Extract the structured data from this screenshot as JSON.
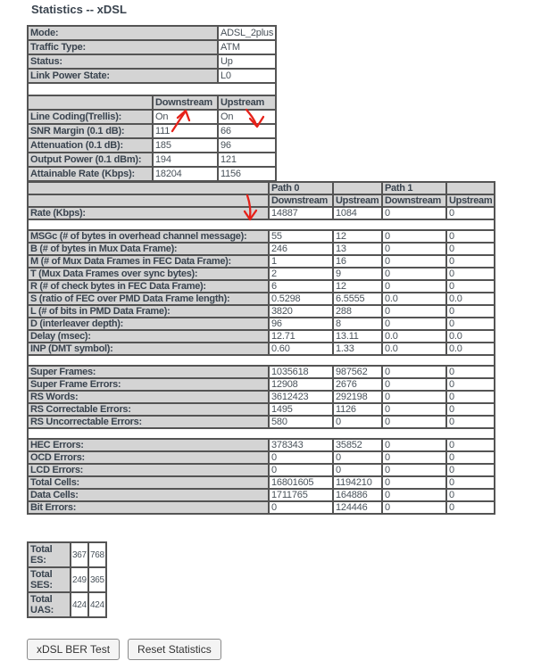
{
  "page": {
    "title": "Statistics -- xDSL"
  },
  "colors": {
    "header_cell_bg": "#d4d4d4",
    "table_border": "#545454",
    "label_text": "#39434e",
    "value_text": "#49525a",
    "annotation_arrow": "#e62119"
  },
  "info_table": {
    "rows": [
      {
        "label": "Mode:",
        "value": "ADSL_2plus"
      },
      {
        "label": "Traffic Type:",
        "value": "ATM"
      },
      {
        "label": "Status:",
        "value": "Up"
      },
      {
        "label": "Link Power State:",
        "value": "L0"
      }
    ],
    "stream_headers": {
      "downstream": "Downstream",
      "upstream": "Upstream"
    },
    "stream_rows": [
      {
        "label": "Line Coding(Trellis):",
        "downstream": "On",
        "upstream": "On"
      },
      {
        "label": "SNR Margin (0.1 dB):",
        "downstream": "111",
        "upstream": "66"
      },
      {
        "label": "Attenuation (0.1 dB):",
        "downstream": "185",
        "upstream": "96"
      },
      {
        "label": "Output Power (0.1 dBm):",
        "downstream": "194",
        "upstream": "121"
      },
      {
        "label": "Attainable Rate (Kbps):",
        "downstream": "18204",
        "upstream": "1156"
      }
    ]
  },
  "path_table": {
    "path_headers": {
      "path0": "Path 0",
      "path1": "Path 1"
    },
    "stream_headers": {
      "downstream": "Downstream",
      "upstream": "Upstream"
    },
    "sections": [
      [
        {
          "label": "Rate (Kbps):",
          "values": [
            "14887",
            "1084",
            "0",
            "0"
          ]
        }
      ],
      [
        {
          "label": "MSGc (# of bytes in overhead channel message):",
          "values": [
            "55",
            "12",
            "0",
            "0"
          ]
        },
        {
          "label": "B (# of bytes in Mux Data Frame):",
          "values": [
            "246",
            "13",
            "0",
            "0"
          ]
        },
        {
          "label": "M (# of Mux Data Frames in FEC Data Frame):",
          "values": [
            "1",
            "16",
            "0",
            "0"
          ]
        },
        {
          "label": "T (Mux Data Frames over sync bytes):",
          "values": [
            "2",
            "9",
            "0",
            "0"
          ]
        },
        {
          "label": "R (# of check bytes in FEC Data Frame):",
          "values": [
            "6",
            "12",
            "0",
            "0"
          ]
        },
        {
          "label": "S (ratio of FEC over PMD Data Frame length):",
          "values": [
            "0.5298",
            "6.5555",
            "0.0",
            "0.0"
          ]
        },
        {
          "label": "L (# of bits in PMD Data Frame):",
          "values": [
            "3820",
            "288",
            "0",
            "0"
          ]
        },
        {
          "label": "D (interleaver depth):",
          "values": [
            "96",
            "8",
            "0",
            "0"
          ]
        },
        {
          "label": "Delay (msec):",
          "values": [
            "12.71",
            "13.11",
            "0.0",
            "0.0"
          ]
        },
        {
          "label": "INP (DMT symbol):",
          "values": [
            "0.60",
            "1.33",
            "0.0",
            "0.0"
          ]
        }
      ],
      [
        {
          "label": "Super Frames:",
          "values": [
            "1035618",
            "987562",
            "0",
            "0"
          ]
        },
        {
          "label": "Super Frame Errors:",
          "values": [
            "12908",
            "2676",
            "0",
            "0"
          ]
        },
        {
          "label": "RS Words:",
          "values": [
            "3612423",
            "292198",
            "0",
            "0"
          ]
        },
        {
          "label": "RS Correctable Errors:",
          "values": [
            "1495",
            "1126",
            "0",
            "0"
          ]
        },
        {
          "label": "RS Uncorrectable Errors:",
          "values": [
            "580",
            "0",
            "0",
            "0"
          ]
        }
      ],
      [
        {
          "label": "HEC Errors:",
          "values": [
            "378343",
            "35852",
            "0",
            "0"
          ]
        },
        {
          "label": "OCD Errors:",
          "values": [
            "0",
            "0",
            "0",
            "0"
          ]
        },
        {
          "label": "LCD Errors:",
          "values": [
            "0",
            "0",
            "0",
            "0"
          ]
        },
        {
          "label": "Total Cells:",
          "values": [
            "16801605",
            "1194210",
            "0",
            "0"
          ]
        },
        {
          "label": "Data Cells:",
          "values": [
            "1711765",
            "164886",
            "0",
            "0"
          ]
        },
        {
          "label": "Bit Errors:",
          "values": [
            "0",
            "124446",
            "0",
            "0"
          ]
        }
      ]
    ]
  },
  "totals_table": {
    "rows": [
      {
        "label": "Total ES:",
        "values": [
          "367",
          "768"
        ]
      },
      {
        "label": "Total SES:",
        "values": [
          "249",
          "365"
        ]
      },
      {
        "label": "Total UAS:",
        "values": [
          "424",
          "424"
        ]
      }
    ]
  },
  "buttons": [
    {
      "label": "xDSL BER Test"
    },
    {
      "label": "Reset Statistics"
    }
  ],
  "annotations": [
    {
      "name": "snr-margin-downstream-arrow",
      "direction": "up",
      "target_value": "111"
    },
    {
      "name": "snr-margin-upstream-arrow",
      "direction": "down",
      "target_value": "66"
    },
    {
      "name": "rate-downstream-arrow",
      "direction": "down",
      "target_value": "14887"
    }
  ]
}
